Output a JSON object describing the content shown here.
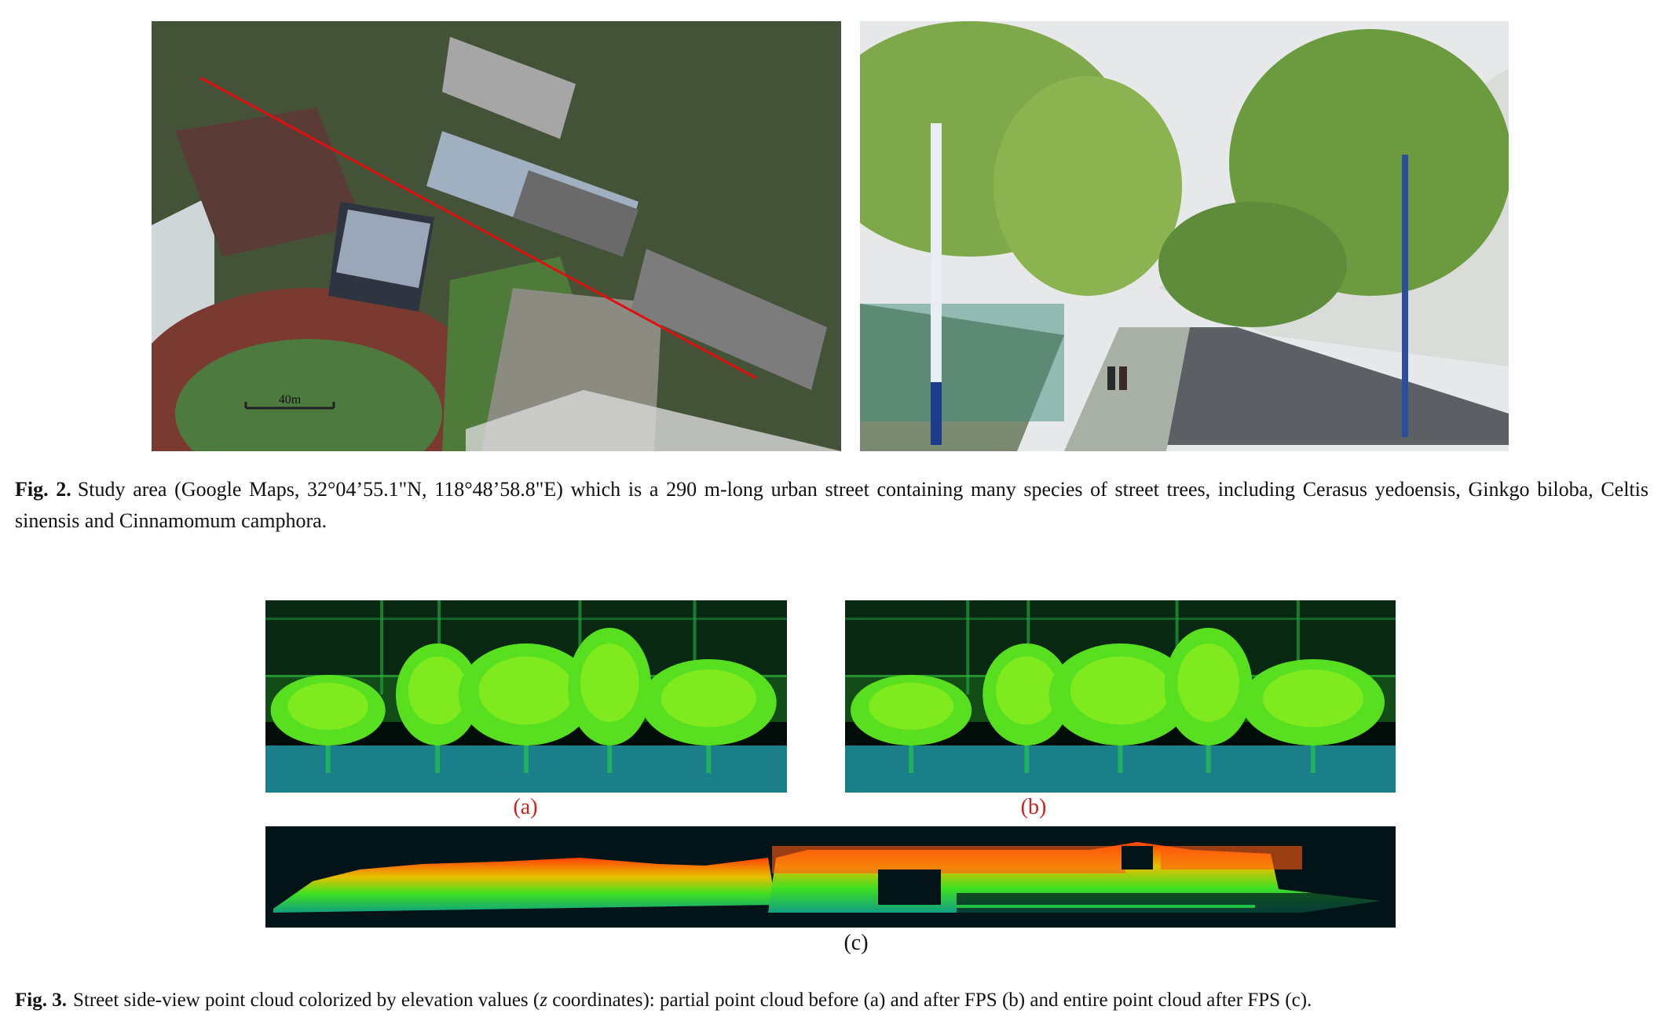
{
  "figure2": {
    "scale_label": "40m",
    "caption_label": "Fig. 2.",
    "caption_text": "Study area (Google Maps, 32°04’55.1\"N, 118°48’58.8\"E) which is a 290 m-long urban street containing many species of street trees, including Cerasus yedoensis, Ginkgo biloba, Celtis sinensis and Cinnamomum camphora."
  },
  "figure3": {
    "panel_labels": [
      "(a)",
      "(b)",
      "(c)"
    ],
    "caption_label": "Fig. 3.",
    "caption_parts": [
      "Street side-view point cloud colorized by elevation values (",
      "z",
      " coordinates): partial point cloud before (a) and after FPS (b) and entire point cloud after FPS (c)."
    ]
  }
}
